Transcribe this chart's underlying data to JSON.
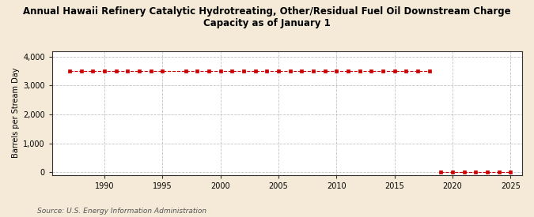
{
  "title": "Annual Hawaii Refinery Catalytic Hydrotreating, Other/Residual Fuel Oil Downstream Charge\nCapacity as of January 1",
  "ylabel": "Barrels per Stream Day",
  "source": "Source: U.S. Energy Information Administration",
  "background_color": "#f5ead8",
  "plot_bg_color": "#ffffff",
  "line_color": "#cc0000",
  "grid_color": "#aaaaaa",
  "xlim": [
    1985.5,
    2026
  ],
  "ylim": [
    -100,
    4200
  ],
  "yticks": [
    0,
    1000,
    2000,
    3000,
    4000
  ],
  "ytick_labels": [
    "0",
    "1,000",
    "2,000",
    "3,000",
    "4,000"
  ],
  "xticks": [
    1990,
    1995,
    2000,
    2005,
    2010,
    2015,
    2020,
    2025
  ],
  "series_high": {
    "years": [
      1987,
      1988,
      1989,
      1990,
      1991,
      1992,
      1993,
      1994,
      1995,
      1997,
      1998,
      1999,
      2000,
      2001,
      2002,
      2003,
      2004,
      2005,
      2006,
      2007,
      2008,
      2009,
      2010,
      2011,
      2012,
      2013,
      2014,
      2015,
      2016,
      2017,
      2018
    ],
    "values": [
      3500,
      3500,
      3500,
      3500,
      3500,
      3500,
      3500,
      3500,
      3500,
      3500,
      3500,
      3500,
      3500,
      3500,
      3500,
      3500,
      3500,
      3500,
      3500,
      3500,
      3500,
      3500,
      3500,
      3500,
      3500,
      3500,
      3500,
      3500,
      3500,
      3500,
      3500
    ]
  },
  "series_low": {
    "years": [
      2019,
      2020,
      2021,
      2022,
      2023,
      2024,
      2025
    ],
    "values": [
      0,
      0,
      0,
      0,
      0,
      0,
      0
    ]
  }
}
